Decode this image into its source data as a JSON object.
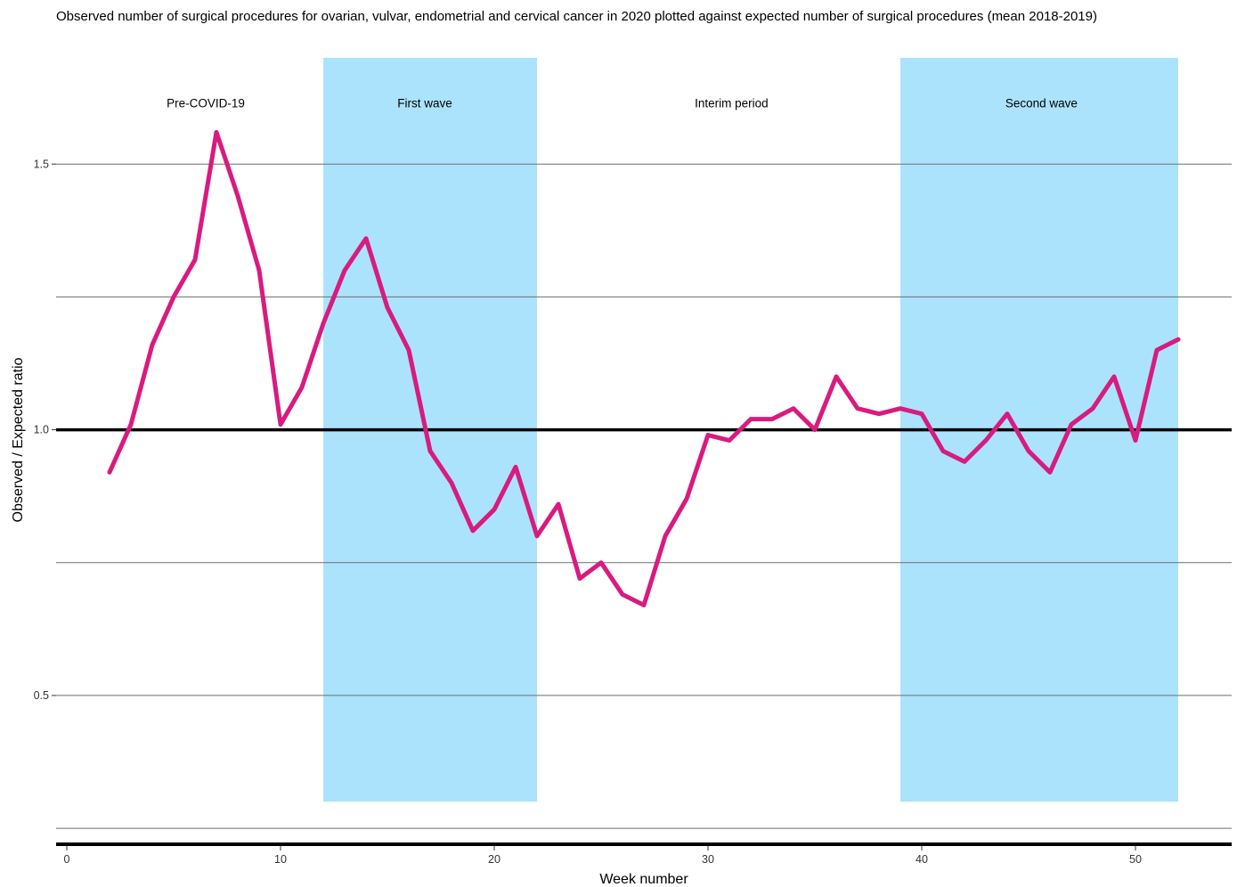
{
  "colors": {
    "line": "#d81b7f",
    "band": "#abe3fd",
    "gridline": "#6e6e6e",
    "reference": "#000000",
    "background": "#ffffff"
  },
  "chart_data": {
    "type": "line",
    "title": "Observed number of surgical procedures for ovarian, vulvar, endometrial and cervical cancer in 2020 plotted against expected number of surgical procedures (mean 2018-2019)",
    "xlabel": "Week number",
    "ylabel": "Observed / Expected ratio",
    "xlim": [
      -0.5,
      54.5
    ],
    "ylim": [
      0.225,
      1.725
    ],
    "xticks": [
      0,
      10,
      20,
      30,
      40,
      50
    ],
    "yticks": [
      0.5,
      1.0,
      1.5
    ],
    "ytick_labels": [
      "0.5",
      "1.0",
      "1.5"
    ],
    "reference_line": 1.0,
    "grid": "horizontal",
    "periods": [
      {
        "label": "Pre-COVID-19",
        "start": null,
        "end": null,
        "label_x": 6.5,
        "shaded": false
      },
      {
        "label": "First wave",
        "start": 12,
        "end": 22,
        "label_x": 16.75,
        "shaded": true
      },
      {
        "label": "Interim period",
        "start": null,
        "end": null,
        "label_x": 31.1,
        "shaded": false
      },
      {
        "label": "Second wave",
        "start": 39,
        "end": 52,
        "label_x": 45.6,
        "shaded": true
      }
    ],
    "band_y_range": [
      0.3,
      1.7
    ],
    "period_label_y": 1.615,
    "series": [
      {
        "x": [
          2,
          3,
          4,
          5,
          6,
          7,
          8,
          9,
          10,
          11,
          12,
          13,
          14,
          15,
          16,
          17,
          18,
          19,
          20,
          21,
          22,
          23,
          24,
          25,
          26,
          27,
          28,
          29,
          30,
          31,
          32,
          33,
          34,
          35,
          36,
          37,
          38,
          39,
          40,
          41,
          42,
          43,
          44,
          45,
          46,
          47,
          48,
          49,
          50,
          51,
          52
        ],
        "values": [
          0.92,
          1.01,
          1.16,
          1.25,
          1.32,
          1.56,
          1.44,
          1.3,
          1.01,
          1.08,
          1.2,
          1.3,
          1.36,
          1.23,
          1.15,
          0.96,
          0.9,
          0.81,
          0.85,
          0.93,
          0.8,
          0.86,
          0.72,
          0.75,
          0.69,
          0.67,
          0.8,
          0.87,
          0.99,
          0.98,
          1.02,
          1.02,
          1.04,
          1.0,
          1.1,
          1.04,
          1.03,
          1.04,
          1.03,
          0.96,
          0.94,
          0.98,
          1.03,
          0.96,
          0.92,
          1.01,
          1.04,
          1.1,
          0.98,
          1.15,
          1.17
        ]
      }
    ]
  }
}
